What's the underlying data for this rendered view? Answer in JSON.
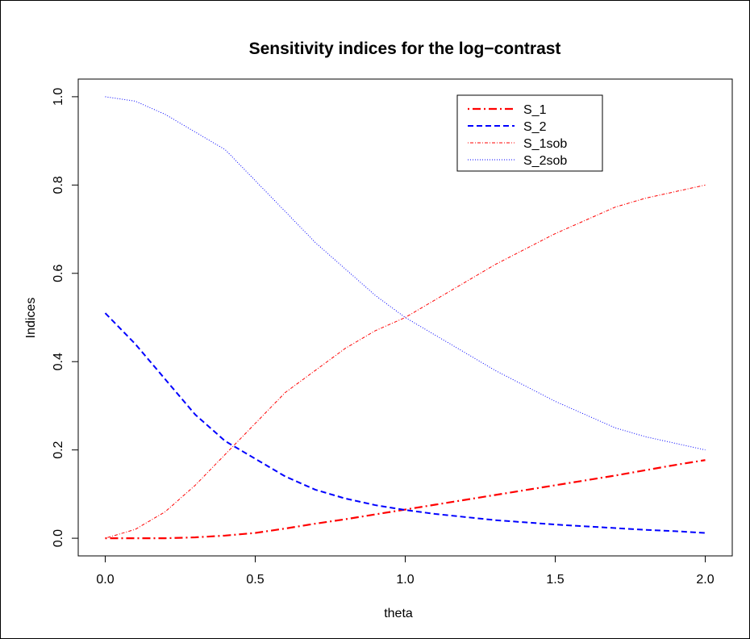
{
  "chart_data": {
    "type": "line",
    "title": "Sensitivity indices for the log−contrast",
    "xlabel": "theta",
    "ylabel": "Indices",
    "xlim": [
      -0.09,
      2.09
    ],
    "ylim": [
      -0.04,
      1.04
    ],
    "xticks": [
      "0.0",
      "0.5",
      "1.0",
      "1.5",
      "2.0"
    ],
    "yticks": [
      "0.0",
      "0.2",
      "0.4",
      "0.6",
      "0.8",
      "1.0"
    ],
    "x": [
      0.0,
      0.1,
      0.2,
      0.3,
      0.4,
      0.5,
      0.6,
      0.7,
      0.8,
      0.9,
      1.0,
      1.1,
      1.2,
      1.3,
      1.4,
      1.5,
      1.6,
      1.7,
      1.8,
      1.9,
      2.0
    ],
    "legend_position": "top-right",
    "grid": false,
    "series": [
      {
        "name": "S_1",
        "color": "#ff0000",
        "dash": "dotdash",
        "values": [
          0.0,
          0.0,
          0.0,
          0.002,
          0.006,
          0.012,
          0.022,
          0.033,
          0.043,
          0.054,
          0.065,
          0.076,
          0.087,
          0.098,
          0.109,
          0.12,
          0.131,
          0.142,
          0.154,
          0.166,
          0.177
        ]
      },
      {
        "name": "S_2",
        "color": "#0000ff",
        "dash": "dashed",
        "values": [
          0.51,
          0.44,
          0.36,
          0.28,
          0.22,
          0.18,
          0.14,
          0.11,
          0.09,
          0.075,
          0.064,
          0.055,
          0.048,
          0.041,
          0.036,
          0.031,
          0.027,
          0.023,
          0.019,
          0.016,
          0.012
        ]
      },
      {
        "name": "S_1sob",
        "color": "#ff0000",
        "dash": "dotdash-thin",
        "values": [
          0.0,
          0.02,
          0.06,
          0.12,
          0.19,
          0.26,
          0.33,
          0.38,
          0.43,
          0.47,
          0.5,
          0.54,
          0.58,
          0.62,
          0.655,
          0.69,
          0.72,
          0.75,
          0.77,
          0.785,
          0.8
        ]
      },
      {
        "name": "S_2sob",
        "color": "#0000ff",
        "dash": "dotted",
        "values": [
          1.0,
          0.99,
          0.96,
          0.92,
          0.88,
          0.81,
          0.74,
          0.67,
          0.61,
          0.55,
          0.5,
          0.46,
          0.42,
          0.38,
          0.345,
          0.31,
          0.28,
          0.25,
          0.23,
          0.215,
          0.2
        ]
      }
    ]
  }
}
